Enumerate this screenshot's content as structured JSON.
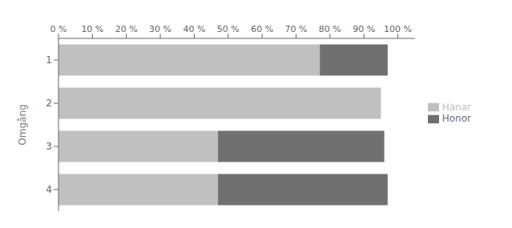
{
  "chart_data": {
    "type": "bar",
    "orientation": "horizontal",
    "stacked": true,
    "categories": [
      "1",
      "2",
      "3",
      "4"
    ],
    "series": [
      {
        "name": "Hanar",
        "color": "#c0c0c0",
        "values": [
          77,
          95,
          47,
          47
        ]
      },
      {
        "name": "Honor",
        "color": "#707070",
        "values": [
          20,
          0,
          49,
          50
        ]
      }
    ],
    "ylabel": "Omgång",
    "xlim": [
      0,
      105
    ],
    "xticks": [
      {
        "value": 0,
        "label": "0 %"
      },
      {
        "value": 10,
        "label": "10 %"
      },
      {
        "value": 20,
        "label": "20 %"
      },
      {
        "value": 30,
        "label": "30 %"
      },
      {
        "value": 40,
        "label": "40 %"
      },
      {
        "value": 50,
        "label": "50 %"
      },
      {
        "value": 60,
        "label": "60 %"
      },
      {
        "value": 70,
        "label": "70 %"
      },
      {
        "value": 80,
        "label": "80 %"
      },
      {
        "value": 90,
        "label": "90 %"
      },
      {
        "value": 100,
        "label": "100 %"
      }
    ],
    "legend": "right",
    "grid": false
  }
}
